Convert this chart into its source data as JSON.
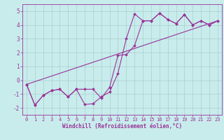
{
  "xlabel": "Windchill (Refroidissement éolien,°C)",
  "bg_color": "#c8ecec",
  "line_color": "#993399",
  "grid_color": "#aacccc",
  "xlim": [
    -0.5,
    23.5
  ],
  "ylim": [
    -2.5,
    5.5
  ],
  "yticks": [
    -2,
    -1,
    0,
    1,
    2,
    3,
    4,
    5
  ],
  "xticks": [
    0,
    1,
    2,
    3,
    4,
    5,
    6,
    7,
    8,
    9,
    10,
    11,
    12,
    13,
    14,
    15,
    16,
    17,
    18,
    19,
    20,
    21,
    22,
    23
  ],
  "line1_x": [
    0,
    1,
    2,
    3,
    4,
    5,
    6,
    7,
    8,
    9,
    10,
    11,
    12,
    13,
    14,
    15,
    16,
    17,
    18,
    19,
    20,
    21,
    22,
    23
  ],
  "line1_y": [
    -0.3,
    -1.8,
    -1.1,
    -0.75,
    -0.65,
    -1.2,
    -0.65,
    -1.75,
    -1.7,
    -1.2,
    -0.85,
    0.5,
    3.0,
    4.8,
    4.3,
    4.3,
    4.85,
    4.4,
    4.1,
    4.75,
    4.0,
    4.3,
    4.0,
    4.3
  ],
  "line2_x": [
    0,
    1,
    2,
    3,
    4,
    5,
    6,
    7,
    8,
    9,
    10,
    11,
    12,
    13,
    14,
    15,
    16,
    17,
    18,
    19,
    20,
    21,
    22,
    23
  ],
  "line2_y": [
    -0.3,
    -1.8,
    -1.1,
    -0.75,
    -0.65,
    -1.2,
    -0.65,
    -0.65,
    -0.65,
    -1.3,
    -0.5,
    1.8,
    1.85,
    2.5,
    4.3,
    4.3,
    4.85,
    4.4,
    4.1,
    4.75,
    4.0,
    4.3,
    4.0,
    4.3
  ],
  "line3_x": [
    0,
    23
  ],
  "line3_y": [
    -0.3,
    4.3
  ]
}
